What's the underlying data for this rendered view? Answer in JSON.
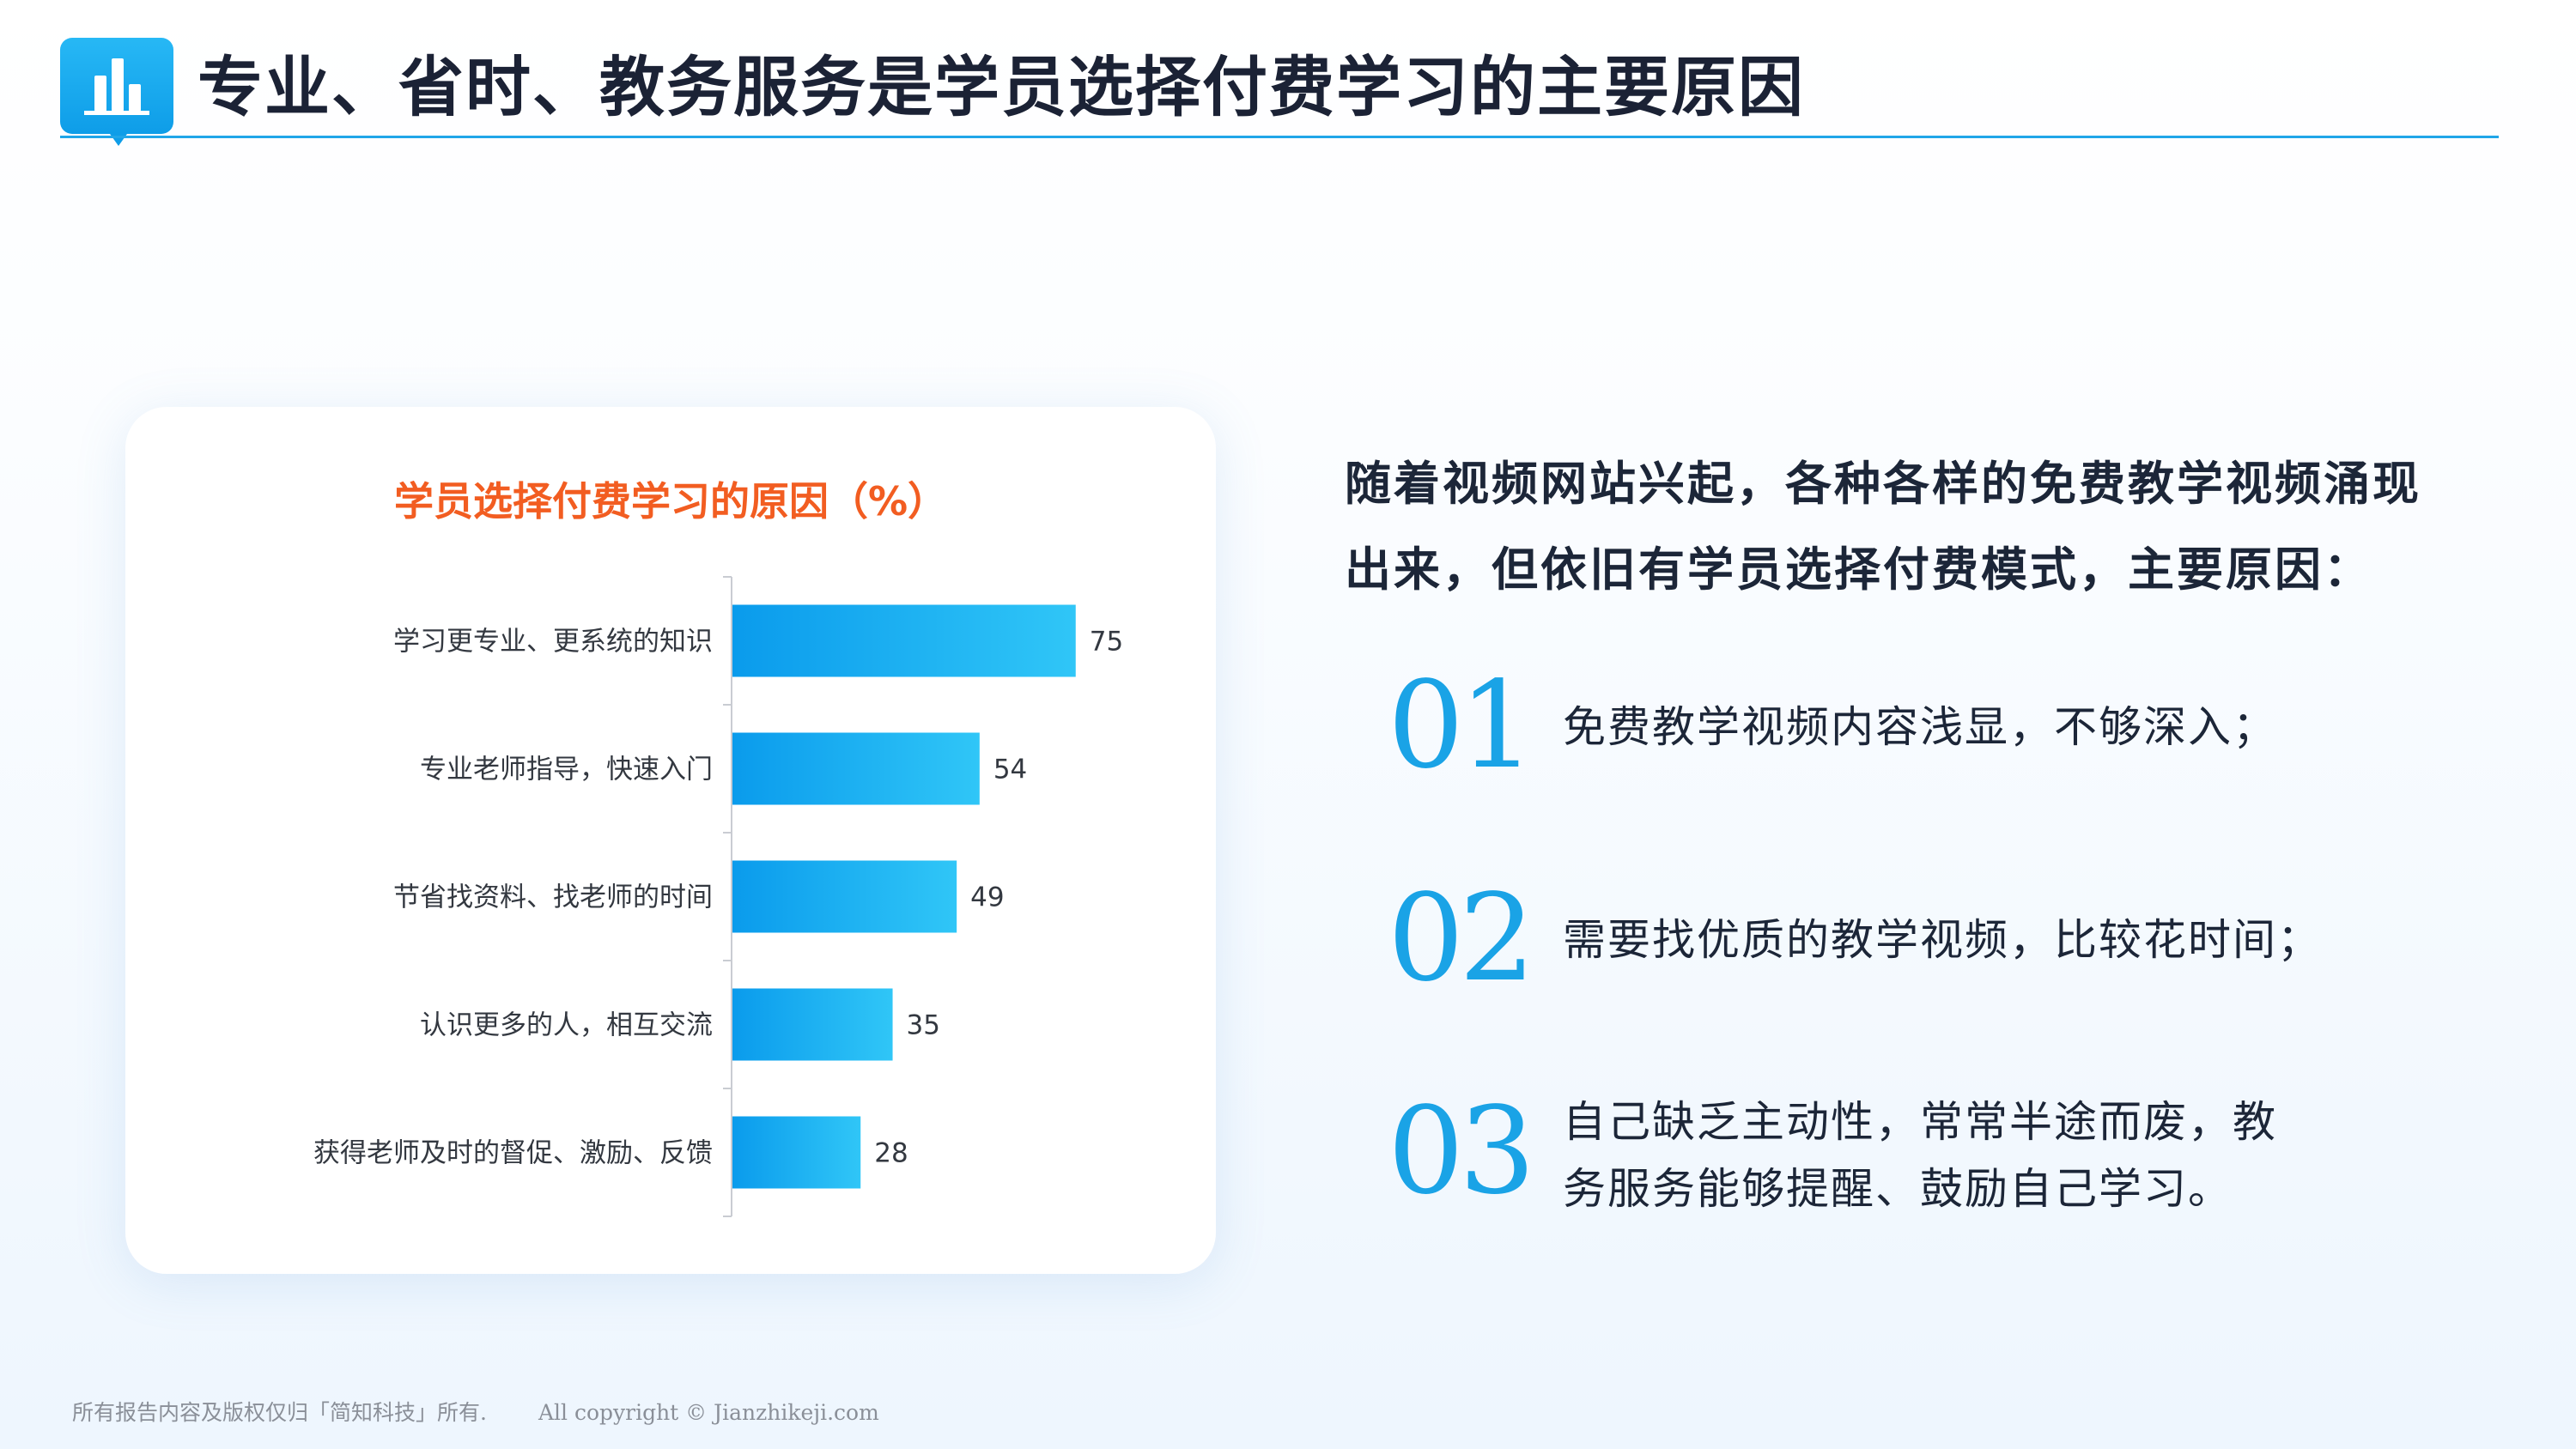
{
  "header": {
    "title": "专业、省时、教务服务是学员选择付费学习的主要原因"
  },
  "colors": {
    "accent": "#1aa3e6",
    "title_accent": "#f25d21",
    "bar_start": "#0a9bec",
    "bar_end": "#30c6f7"
  },
  "chart_data": {
    "type": "bar",
    "orientation": "horizontal",
    "title": "学员选择付费学习的原因（%）",
    "categories": [
      "学习更专业、更系统的知识",
      "专业老师指导，快速入门",
      "节省找资料、找老师的时间",
      "认识更多的人，相互交流",
      "获得老师及时的督促、激励、反馈"
    ],
    "values": [
      75,
      54,
      49,
      35,
      28
    ],
    "data_labels": [
      "75",
      "54",
      "49",
      "35",
      "28"
    ],
    "xlim": [
      0,
      100
    ],
    "grid": false,
    "legend": "none"
  },
  "summary": {
    "intro": "随着视频网站兴起，各种各样的免费教学视频涌现出来，但依旧有学员选择付费模式，主要原因：",
    "reasons": [
      {
        "num": "01",
        "text": "免费教学视频内容浅显，不够深入；"
      },
      {
        "num": "02",
        "text": "需要找优质的教学视频，比较花时间；"
      },
      {
        "num": "03",
        "text": "自己缺乏主动性，常常半途而废，教务服务能够提醒、鼓励自己学习。"
      }
    ]
  },
  "footer": {
    "copyright_cn": "所有报告内容及版权仅归「简知科技」所有.",
    "copyright_en": "All copyright © Jianzhikeji.com"
  }
}
